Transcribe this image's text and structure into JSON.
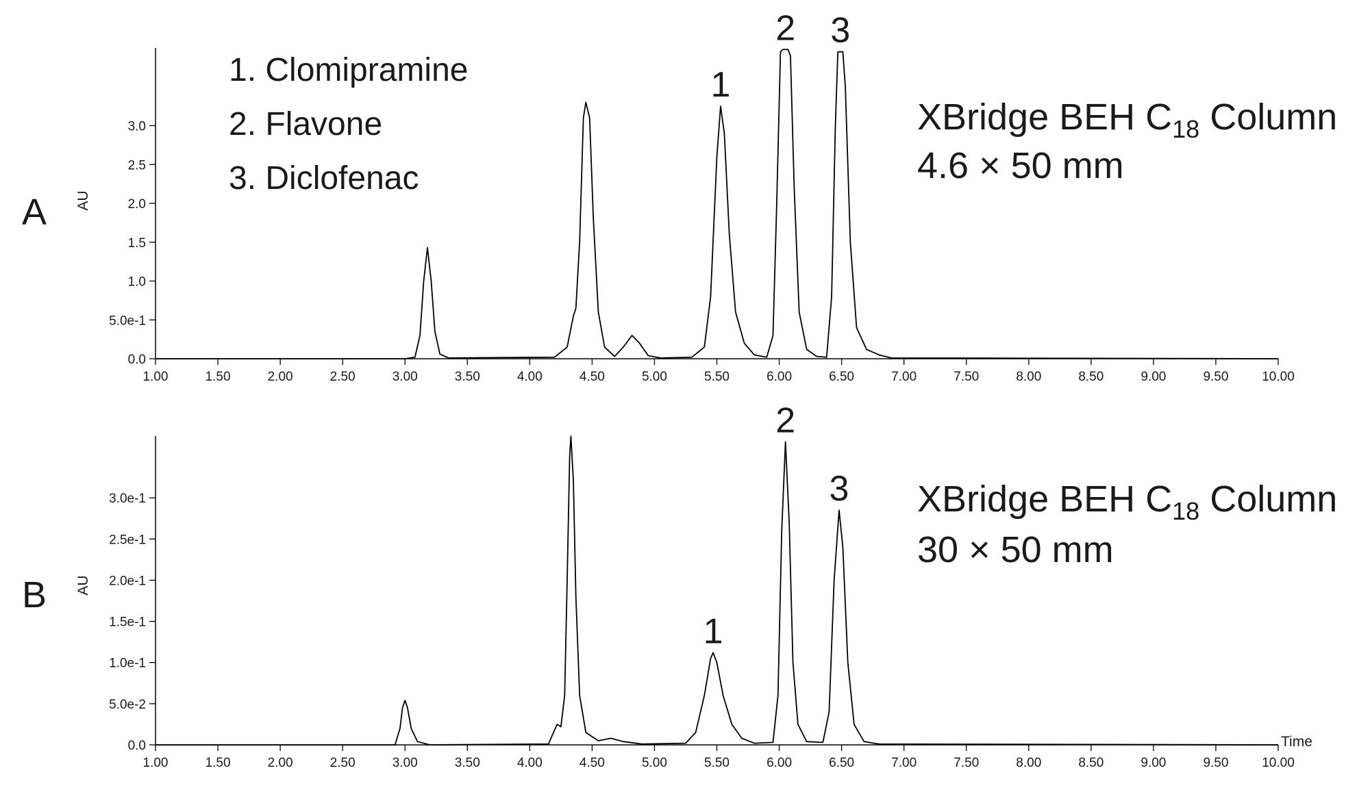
{
  "chart_data": [
    {
      "type": "line",
      "panel_label": "A",
      "ylabel": "AU",
      "legend_lines": [
        "1. Clomipramine",
        "2. Flavone",
        "3. Diclofenac"
      ],
      "column_name": "XBridge BEH C",
      "column_subscript": "18",
      "column_suffix": " Column",
      "column_size": "4.6 × 50 mm",
      "color": "#000000",
      "xlim": [
        1,
        10
      ],
      "ylim": [
        0,
        4.0
      ],
      "xticks": [
        {
          "value": 1,
          "label": "1.00"
        },
        {
          "value": 1.5,
          "label": "1.50"
        },
        {
          "value": 2,
          "label": "2.00"
        },
        {
          "value": 2.5,
          "label": "2.50"
        },
        {
          "value": 3,
          "label": "3.00"
        },
        {
          "value": 3.5,
          "label": "3.50"
        },
        {
          "value": 4,
          "label": "4.00"
        },
        {
          "value": 4.5,
          "label": "4.50"
        },
        {
          "value": 5,
          "label": "5.00"
        },
        {
          "value": 5.5,
          "label": "5.50"
        },
        {
          "value": 6,
          "label": "6.00"
        },
        {
          "value": 6.5,
          "label": "6.50"
        },
        {
          "value": 7,
          "label": "7.00"
        },
        {
          "value": 7.5,
          "label": "7.50"
        },
        {
          "value": 8,
          "label": "8.00"
        },
        {
          "value": 8.5,
          "label": "8.50"
        },
        {
          "value": 9,
          "label": "9.00"
        },
        {
          "value": 9.5,
          "label": "9.50"
        },
        {
          "value": 10,
          "label": "10.00"
        }
      ],
      "yticks": [
        {
          "value": 0,
          "label": "0.0"
        },
        {
          "value": 0.5,
          "label": "5.0e-1"
        },
        {
          "value": 1,
          "label": "1.0"
        },
        {
          "value": 1.5,
          "label": "1.5"
        },
        {
          "value": 2,
          "label": "2.0"
        },
        {
          "value": 2.5,
          "label": "2.5"
        },
        {
          "value": 3,
          "label": "3.0"
        }
      ],
      "x": [
        1.0,
        3.0,
        3.08,
        3.12,
        3.15,
        3.18,
        3.21,
        3.24,
        3.28,
        3.35,
        4.2,
        4.3,
        4.35,
        4.37,
        4.4,
        4.43,
        4.45,
        4.48,
        4.51,
        4.55,
        4.6,
        4.68,
        4.75,
        4.82,
        4.88,
        4.95,
        5.05,
        5.3,
        5.4,
        5.45,
        5.5,
        5.53,
        5.56,
        5.6,
        5.65,
        5.72,
        5.8,
        5.9,
        5.95,
        5.98,
        6.01,
        6.03,
        6.07,
        6.09,
        6.12,
        6.16,
        6.22,
        6.3,
        6.38,
        6.42,
        6.45,
        6.47,
        6.51,
        6.53,
        6.57,
        6.62,
        6.7,
        6.8,
        6.9,
        10.0
      ],
      "values": [
        0,
        0,
        0.02,
        0.3,
        1.0,
        1.43,
        1.0,
        0.35,
        0.06,
        0.01,
        0.02,
        0.15,
        0.55,
        0.65,
        1.5,
        3.1,
        3.3,
        3.1,
        1.8,
        0.6,
        0.15,
        0.03,
        0.15,
        0.3,
        0.2,
        0.04,
        0.01,
        0.02,
        0.15,
        0.8,
        2.6,
        3.25,
        2.9,
        1.6,
        0.6,
        0.2,
        0.05,
        0.02,
        0.3,
        2.0,
        3.95,
        3.98,
        3.98,
        3.9,
        2.2,
        0.6,
        0.12,
        0.03,
        0.02,
        0.8,
        3.0,
        3.95,
        3.95,
        3.5,
        1.5,
        0.4,
        0.12,
        0.05,
        0.01,
        0
      ],
      "annotations": [
        {
          "text": "1",
          "x": 5.53,
          "y": 3.25
        },
        {
          "text": "2",
          "x": 6.05,
          "y": 3.98
        },
        {
          "text": "3",
          "x": 6.49,
          "y": 3.95
        }
      ]
    },
    {
      "type": "line",
      "panel_label": "B",
      "ylabel": "AU",
      "xlabel": "Time",
      "column_name": "XBridge BEH C",
      "column_subscript": "18",
      "column_suffix": " Column",
      "column_size": "30 × 50 mm",
      "color": "#000000",
      "xlim": [
        1,
        10
      ],
      "ylim": [
        0,
        0.375
      ],
      "xticks": [
        {
          "value": 1,
          "label": "1.00"
        },
        {
          "value": 1.5,
          "label": "1.50"
        },
        {
          "value": 2,
          "label": "2.00"
        },
        {
          "value": 2.5,
          "label": "2.50"
        },
        {
          "value": 3,
          "label": "3.00"
        },
        {
          "value": 3.5,
          "label": "3.50"
        },
        {
          "value": 4,
          "label": "4.00"
        },
        {
          "value": 4.5,
          "label": "4.50"
        },
        {
          "value": 5,
          "label": "5.00"
        },
        {
          "value": 5.5,
          "label": "5.50"
        },
        {
          "value": 6,
          "label": "6.00"
        },
        {
          "value": 6.5,
          "label": "6.50"
        },
        {
          "value": 7,
          "label": "7.00"
        },
        {
          "value": 7.5,
          "label": "7.50"
        },
        {
          "value": 8,
          "label": "8.00"
        },
        {
          "value": 8.5,
          "label": "8.50"
        },
        {
          "value": 9,
          "label": "9.00"
        },
        {
          "value": 9.5,
          "label": "9.50"
        },
        {
          "value": 10,
          "label": "10.00"
        }
      ],
      "yticks": [
        {
          "value": 0,
          "label": "0.0"
        },
        {
          "value": 0.05,
          "label": "5.0e-2"
        },
        {
          "value": 0.1,
          "label": "1.0e-1"
        },
        {
          "value": 0.15,
          "label": "1.5e-1"
        },
        {
          "value": 0.2,
          "label": "2.0e-1"
        },
        {
          "value": 0.25,
          "label": "2.5e-1"
        },
        {
          "value": 0.3,
          "label": "3.0e-1"
        }
      ],
      "x": [
        1.0,
        2.92,
        2.96,
        2.98,
        3.0,
        3.02,
        3.05,
        3.1,
        3.2,
        4.15,
        4.19,
        4.22,
        4.25,
        4.28,
        4.3,
        4.32,
        4.33,
        4.35,
        4.37,
        4.4,
        4.45,
        4.55,
        4.65,
        4.75,
        4.9,
        5.25,
        5.33,
        5.4,
        5.45,
        5.47,
        5.5,
        5.55,
        5.62,
        5.7,
        5.8,
        5.95,
        5.99,
        6.02,
        6.05,
        6.08,
        6.11,
        6.15,
        6.22,
        6.35,
        6.4,
        6.44,
        6.48,
        6.51,
        6.55,
        6.6,
        6.68,
        6.8,
        10.0
      ],
      "values": [
        0,
        0,
        0.02,
        0.045,
        0.054,
        0.045,
        0.02,
        0.004,
        0,
        0.001,
        0.015,
        0.025,
        0.022,
        0.06,
        0.2,
        0.35,
        0.375,
        0.32,
        0.18,
        0.06,
        0.015,
        0.005,
        0.008,
        0.004,
        0.001,
        0.002,
        0.015,
        0.06,
        0.105,
        0.112,
        0.1,
        0.06,
        0.025,
        0.008,
        0.002,
        0.003,
        0.06,
        0.26,
        0.368,
        0.27,
        0.1,
        0.025,
        0.004,
        0.003,
        0.04,
        0.2,
        0.285,
        0.24,
        0.1,
        0.025,
        0.004,
        0.001,
        0
      ],
      "annotations": [
        {
          "text": "1",
          "x": 5.47,
          "y": 0.112
        },
        {
          "text": "2",
          "x": 6.05,
          "y": 0.368
        },
        {
          "text": "3",
          "x": 6.48,
          "y": 0.285
        }
      ]
    }
  ]
}
